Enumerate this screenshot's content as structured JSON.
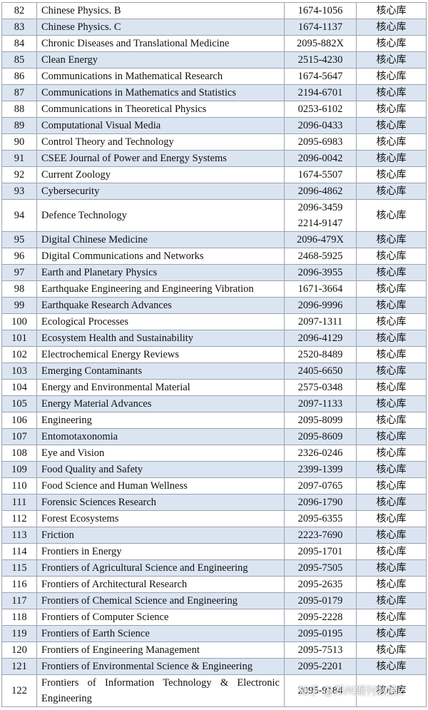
{
  "table": {
    "rows": [
      [
        "82",
        "Chinese Physics. B",
        [
          "1674-1056"
        ],
        "核心库"
      ],
      [
        "83",
        "Chinese Physics. C",
        [
          "1674-1137"
        ],
        "核心库"
      ],
      [
        "84",
        "Chronic Diseases and Translational Medicine",
        [
          "2095-882X"
        ],
        "核心库"
      ],
      [
        "85",
        "Clean Energy",
        [
          "2515-4230"
        ],
        "核心库"
      ],
      [
        "86",
        "Communications in Mathematical Research",
        [
          "1674-5647"
        ],
        "核心库"
      ],
      [
        "87",
        "Communications in Mathematics and Statistics",
        [
          "2194-6701"
        ],
        "核心库"
      ],
      [
        "88",
        "Communications in Theoretical Physics",
        [
          "0253-6102"
        ],
        "核心库"
      ],
      [
        "89",
        "Computational Visual Media",
        [
          "2096-0433"
        ],
        "核心库"
      ],
      [
        "90",
        "Control Theory and Technology",
        [
          "2095-6983"
        ],
        "核心库"
      ],
      [
        "91",
        "CSEE Journal of Power and Energy Systems",
        [
          "2096-0042"
        ],
        "核心库"
      ],
      [
        "92",
        "Current Zoology",
        [
          "1674-5507"
        ],
        "核心库"
      ],
      [
        "93",
        "Cybersecurity",
        [
          "2096-4862"
        ],
        "核心库"
      ],
      [
        "94",
        "Defence Technology",
        [
          "2096-3459",
          "2214-9147"
        ],
        "核心库"
      ],
      [
        "95",
        "Digital Chinese Medicine",
        [
          "2096-479X"
        ],
        "核心库"
      ],
      [
        "96",
        "Digital Communications and Networks",
        [
          "2468-5925"
        ],
        "核心库"
      ],
      [
        "97",
        "Earth and Planetary Physics",
        [
          "2096-3955"
        ],
        "核心库"
      ],
      [
        "98",
        "Earthquake Engineering and Engineering Vibration",
        [
          "1671-3664"
        ],
        "核心库"
      ],
      [
        "99",
        "Earthquake Research Advances",
        [
          "2096-9996"
        ],
        "核心库"
      ],
      [
        "100",
        "Ecological Processes",
        [
          "2097-1311"
        ],
        "核心库"
      ],
      [
        "101",
        "Ecosystem Health and Sustainability",
        [
          "2096-4129"
        ],
        "核心库"
      ],
      [
        "102",
        "Electrochemical Energy Reviews",
        [
          "2520-8489"
        ],
        "核心库"
      ],
      [
        "103",
        "Emerging Contaminants",
        [
          "2405-6650"
        ],
        "核心库"
      ],
      [
        "104",
        "Energy and Environmental Material",
        [
          "2575-0348"
        ],
        "核心库"
      ],
      [
        "105",
        "Energy Material Advances",
        [
          "2097-1133"
        ],
        "核心库"
      ],
      [
        "106",
        "Engineering",
        [
          "2095-8099"
        ],
        "核心库"
      ],
      [
        "107",
        "Entomotaxonomia",
        [
          "2095-8609"
        ],
        "核心库"
      ],
      [
        "108",
        "Eye and Vision",
        [
          "2326-0246"
        ],
        "核心库"
      ],
      [
        "109",
        "Food Quality and Safety",
        [
          "2399-1399"
        ],
        "核心库"
      ],
      [
        "110",
        "Food Science and Human Wellness",
        [
          "2097-0765"
        ],
        "核心库"
      ],
      [
        "111",
        "Forensic Sciences Research",
        [
          "2096-1790"
        ],
        "核心库"
      ],
      [
        "112",
        "Forest Ecosystems",
        [
          "2095-6355"
        ],
        "核心库"
      ],
      [
        "113",
        "Friction",
        [
          "2223-7690"
        ],
        "核心库"
      ],
      [
        "114",
        "Frontiers in Energy",
        [
          "2095-1701"
        ],
        "核心库"
      ],
      [
        "115",
        "Frontiers of Agricultural Science and Engineering",
        [
          "2095-7505"
        ],
        "核心库"
      ],
      [
        "116",
        "Frontiers of Architectural Research",
        [
          "2095-2635"
        ],
        "核心库"
      ],
      [
        "117",
        "Frontiers of Chemical Science and Engineering",
        [
          "2095-0179"
        ],
        "核心库"
      ],
      [
        "118",
        "Frontiers of Computer Science",
        [
          "2095-2228"
        ],
        "核心库"
      ],
      [
        "119",
        "Frontiers of Earth Science",
        [
          "2095-0195"
        ],
        "核心库"
      ],
      [
        "120",
        "Frontiers of Engineering Management",
        [
          "2095-7513"
        ],
        "核心库"
      ],
      [
        "121",
        "Frontiers of Environmental Science & Engineering",
        [
          "2095-2201"
        ],
        "核心库"
      ],
      [
        "122",
        "Frontiers of Information Technology & Electronic Engineering",
        [
          "2095-9184"
        ],
        "核心库"
      ]
    ]
  },
  "watermark": "知乎 @郑州期刊数据2"
}
